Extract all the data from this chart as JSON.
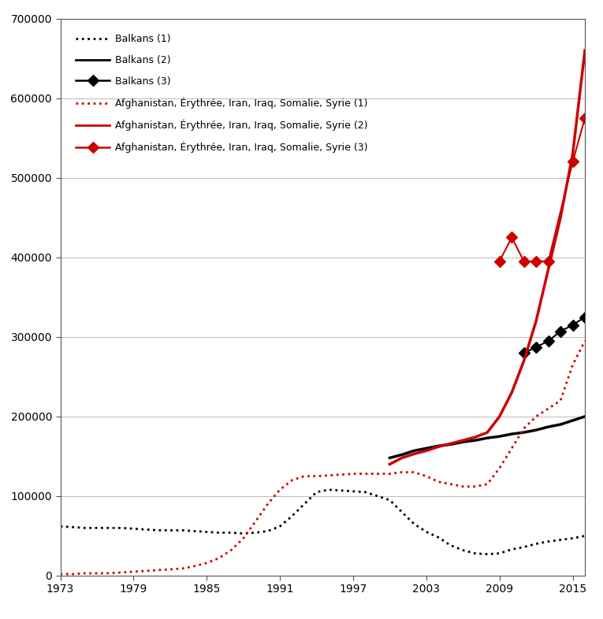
{
  "title": "",
  "ylabel": "",
  "xlabel": "",
  "ylim": [
    0,
    700000
  ],
  "xlim": [
    1973,
    2016
  ],
  "yticks": [
    0,
    100000,
    200000,
    300000,
    400000,
    500000,
    600000,
    700000
  ],
  "xticks": [
    1973,
    1979,
    1985,
    1991,
    1997,
    2003,
    2009,
    2015
  ],
  "background_color": "#ffffff",
  "balkans_1": {
    "years": [
      1973,
      1974,
      1975,
      1976,
      1977,
      1978,
      1979,
      1980,
      1981,
      1982,
      1983,
      1984,
      1985,
      1986,
      1987,
      1988,
      1989,
      1990,
      1991,
      1992,
      1993,
      1994,
      1995,
      1996,
      1997,
      1998,
      1999,
      2000,
      2001,
      2002,
      2003,
      2004,
      2005,
      2006,
      2007,
      2008,
      2009,
      2010,
      2011,
      2012,
      2013,
      2014,
      2015,
      2016
    ],
    "values": [
      62000,
      61000,
      60000,
      60000,
      60000,
      60000,
      59000,
      58000,
      57000,
      57000,
      57000,
      56000,
      55000,
      54000,
      54000,
      53000,
      54000,
      56000,
      62000,
      75000,
      90000,
      105000,
      108000,
      107000,
      106000,
      105000,
      100000,
      95000,
      80000,
      65000,
      55000,
      48000,
      38000,
      32000,
      28000,
      27000,
      28000,
      33000,
      36000,
      40000,
      43000,
      45000,
      47000,
      50000
    ],
    "color": "#000000",
    "linestyle": "dotted",
    "linewidth": 2.0
  },
  "balkans_2": {
    "years": [
      2000,
      2001,
      2002,
      2003,
      2004,
      2005,
      2006,
      2007,
      2008,
      2009,
      2010,
      2011,
      2012,
      2013,
      2014,
      2015,
      2016
    ],
    "values": [
      148000,
      152000,
      157000,
      160000,
      163000,
      165000,
      168000,
      170000,
      173000,
      175000,
      178000,
      180000,
      183000,
      187000,
      190000,
      195000,
      200000
    ],
    "color": "#000000",
    "linestyle": "solid",
    "linewidth": 2.5
  },
  "balkans_3": {
    "years": [
      2011,
      2012,
      2013,
      2014,
      2015,
      2016
    ],
    "values": [
      280000,
      287000,
      295000,
      307000,
      315000,
      325000
    ],
    "color": "#000000",
    "linestyle": "solid",
    "linewidth": 1.5,
    "marker": "D",
    "markersize": 7
  },
  "afghan_1": {
    "years": [
      1973,
      1974,
      1975,
      1976,
      1977,
      1978,
      1979,
      1980,
      1981,
      1982,
      1983,
      1984,
      1985,
      1986,
      1987,
      1988,
      1989,
      1990,
      1991,
      1992,
      1993,
      1994,
      1995,
      1996,
      1997,
      1998,
      1999,
      2000,
      2001,
      2002,
      2003,
      2004,
      2005,
      2006,
      2007,
      2008,
      2009,
      2010,
      2011,
      2012,
      2013,
      2014,
      2015,
      2016
    ],
    "values": [
      2000,
      2000,
      3000,
      3000,
      3000,
      4000,
      5000,
      6000,
      7000,
      8000,
      9000,
      12000,
      16000,
      22000,
      32000,
      47000,
      68000,
      90000,
      108000,
      120000,
      125000,
      125000,
      126000,
      127000,
      128000,
      128000,
      128000,
      128000,
      130000,
      130000,
      125000,
      118000,
      115000,
      112000,
      112000,
      115000,
      135000,
      160000,
      185000,
      200000,
      210000,
      220000,
      265000,
      295000
    ],
    "color": "#cc0000",
    "linestyle": "dotted",
    "linewidth": 2.0
  },
  "afghan_2": {
    "years": [
      2000,
      2001,
      2002,
      2003,
      2004,
      2005,
      2006,
      2007,
      2008,
      2009,
      2010,
      2011,
      2012,
      2013,
      2014,
      2015,
      2016
    ],
    "values": [
      140000,
      148000,
      153000,
      157000,
      162000,
      166000,
      170000,
      174000,
      180000,
      200000,
      230000,
      270000,
      320000,
      385000,
      450000,
      530000,
      660000
    ],
    "color": "#cc0000",
    "linestyle": "solid",
    "linewidth": 2.5
  },
  "afghan_3": {
    "years": [
      2009,
      2010,
      2011,
      2012,
      2013,
      2015,
      2016
    ],
    "values": [
      395000,
      425000,
      395000,
      395000,
      395000,
      520000,
      575000
    ],
    "color": "#cc0000",
    "linestyle": "solid",
    "linewidth": 1.5,
    "marker": "D",
    "markersize": 7
  },
  "legend_entries": [
    {
      "label": "Balkans (1)",
      "color": "#000000",
      "linestyle": "dotted",
      "marker": null
    },
    {
      "label": "Balkans (2)",
      "color": "#000000",
      "linestyle": "solid",
      "marker": null
    },
    {
      "label": "Balkans (3)",
      "color": "#000000",
      "linestyle": "solid",
      "marker": "D"
    },
    {
      "label": "Afghanistan, Érythrée, Iran, Iraq, Somalie, Syrie (1)",
      "color": "#cc0000",
      "linestyle": "dotted",
      "marker": null
    },
    {
      "label": "Afghanistan, Érythrée, Iran, Iraq, Somalie, Syrie (2)",
      "color": "#cc0000",
      "linestyle": "solid",
      "marker": null
    },
    {
      "label": "Afghanistan, Érythrée, Iran, Iraq, Somalie, Syrie (3)",
      "color": "#cc0000",
      "linestyle": "solid",
      "marker": "D"
    }
  ]
}
